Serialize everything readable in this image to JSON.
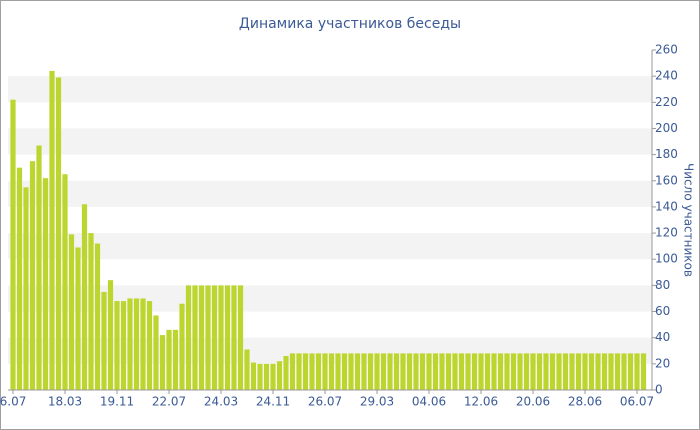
{
  "chart_data": {
    "type": "bar",
    "title": "Динамика участников беседы",
    "y_label": "Число участников",
    "categories": [
      "6.07",
      null,
      null,
      null,
      null,
      null,
      null,
      null,
      "18.03",
      null,
      null,
      null,
      null,
      null,
      null,
      null,
      "19.11",
      null,
      null,
      null,
      null,
      null,
      null,
      null,
      "22.07",
      null,
      null,
      null,
      null,
      null,
      null,
      null,
      "24.03",
      null,
      null,
      null,
      null,
      null,
      null,
      null,
      "24.11",
      null,
      null,
      null,
      null,
      null,
      null,
      null,
      "26.07",
      null,
      null,
      null,
      null,
      null,
      null,
      null,
      "29.03",
      null,
      null,
      null,
      null,
      null,
      null,
      null,
      "04.06",
      null,
      null,
      null,
      null,
      null,
      null,
      null,
      "12.06",
      null,
      null,
      null,
      null,
      null,
      null,
      null,
      "20.06",
      null,
      null,
      null,
      null,
      null,
      null,
      null,
      "28.06",
      null,
      null,
      null,
      null,
      null,
      null,
      null,
      "06.07",
      null
    ],
    "values": [
      222,
      170,
      155,
      175,
      187,
      162,
      244,
      239,
      165,
      119,
      109,
      142,
      120,
      112,
      75,
      84,
      68,
      68,
      70,
      70,
      70,
      68,
      57,
      42,
      46,
      46,
      66,
      80,
      80,
      80,
      80,
      80,
      80,
      80,
      80,
      80,
      31,
      21,
      20,
      20,
      20,
      22,
      26,
      28,
      28,
      28,
      28,
      28,
      28,
      28,
      28,
      28,
      28,
      28,
      28,
      28,
      28,
      28,
      28,
      28,
      28,
      28,
      28,
      28,
      28,
      28,
      28,
      28,
      28,
      28,
      28,
      28,
      28,
      28,
      28,
      28,
      28,
      28,
      28,
      28,
      28,
      28,
      28,
      28,
      28,
      28,
      28,
      28,
      28,
      28,
      28,
      28,
      28,
      28,
      28,
      28,
      28,
      28
    ],
    "color": "#bcd62f",
    "ylim": [
      0,
      260
    ],
    "yticks": [
      0,
      20,
      40,
      60,
      80,
      100,
      120,
      140,
      160,
      180,
      200,
      220,
      240,
      260
    ],
    "grid": true
  }
}
